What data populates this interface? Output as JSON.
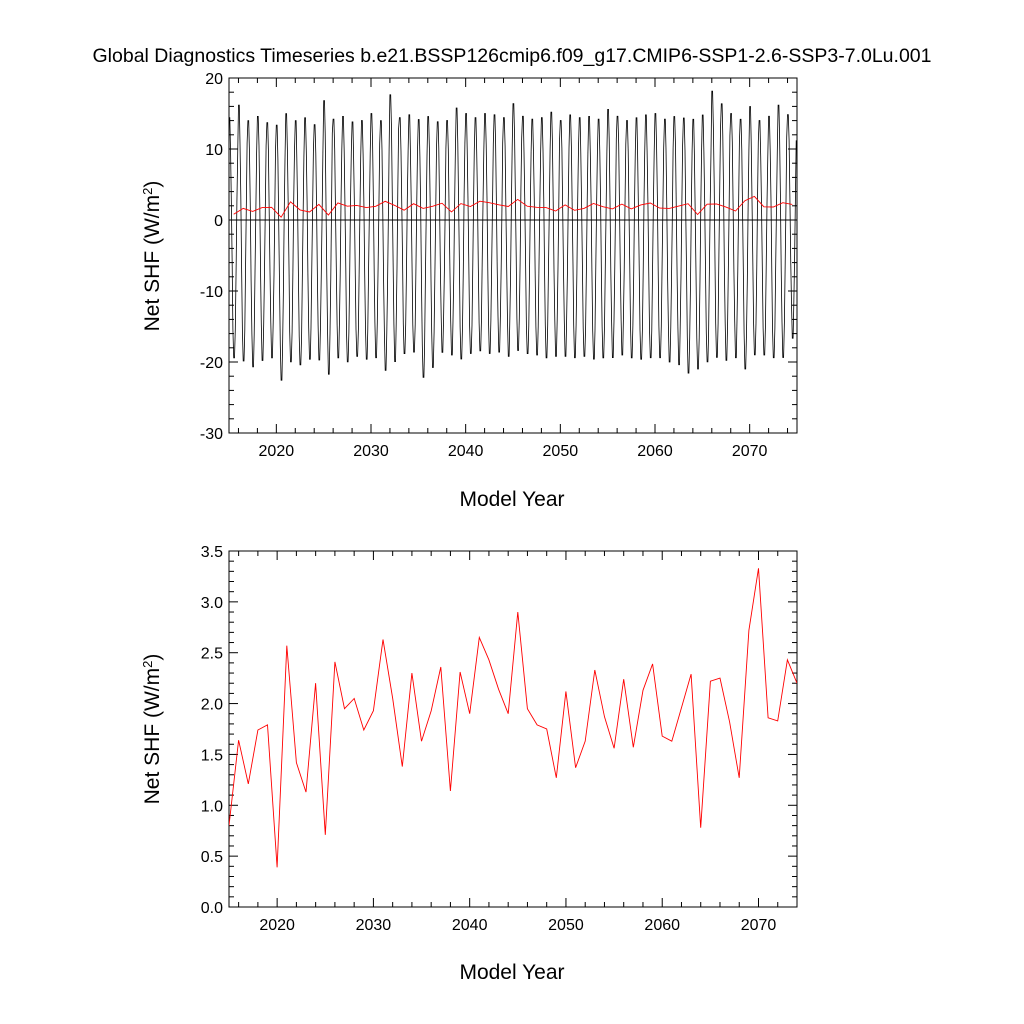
{
  "title": "Global Diagnostics Timeseries b.e21.BSSP126cmip6.f09_g17.CMIP6-SSP1-2.6-SSP3-7.0Lu.001",
  "colors": {
    "monthly": "#000000",
    "annual": "#ff0000",
    "axis": "#000000",
    "zero_line": "#000000"
  },
  "chart_data": [
    {
      "type": "line",
      "xlabel": "Model Year",
      "ylabel": "Net SHF (W/m²)",
      "ylabel_parts": {
        "main": "Net SHF (W/m",
        "sup": "2",
        "close": ")"
      },
      "xlim": [
        2015,
        2075
      ],
      "ylim": [
        -30,
        20
      ],
      "xticks": [
        2020,
        2030,
        2040,
        2050,
        2060,
        2070
      ],
      "xtick_labels": [
        "2020",
        "2030",
        "2040",
        "2050",
        "2060",
        "2070"
      ],
      "yticks": [
        -30,
        -20,
        -10,
        0,
        10,
        20
      ],
      "ytick_labels": [
        "-30",
        "-20",
        "-10",
        "0",
        "10",
        "20"
      ],
      "zero_line": 0,
      "series": [
        {
          "kind": "monthly",
          "x_start": 2015.0,
          "step": 0.08333,
          "months_per_year": 12,
          "years": [
            2015,
            2016,
            2017,
            2018,
            2019,
            2020,
            2021,
            2022,
            2023,
            2024,
            2025,
            2026,
            2027,
            2028,
            2029,
            2030,
            2031,
            2032,
            2033,
            2034,
            2035,
            2036,
            2037,
            2038,
            2039,
            2040,
            2041,
            2042,
            2043,
            2044,
            2045,
            2046,
            2047,
            2048,
            2049,
            2050,
            2051,
            2052,
            2053,
            2054,
            2055,
            2056,
            2057,
            2058,
            2059,
            2060,
            2061,
            2062,
            2063,
            2064,
            2065,
            2066,
            2067,
            2068,
            2069,
            2070,
            2071,
            2072,
            2073,
            2074
          ],
          "annual_max": [
            15.0,
            16.8,
            14.6,
            15.2,
            14.3,
            14.0,
            15.6,
            14.6,
            15.0,
            14.0,
            17.5,
            14.8,
            15.2,
            14.4,
            14.6,
            15.6,
            14.6,
            18.3,
            15.0,
            15.4,
            14.8,
            15.2,
            14.4,
            14.6,
            16.4,
            15.6,
            15.0,
            15.6,
            15.4,
            15.0,
            17.0,
            15.2,
            14.8,
            15.0,
            15.8,
            14.6,
            15.4,
            15.0,
            15.2,
            14.8,
            16.2,
            15.2,
            14.6,
            15.0,
            15.4,
            15.6,
            14.8,
            15.2,
            15.0,
            14.8,
            15.4,
            18.8,
            17.0,
            15.6,
            14.8,
            16.6,
            14.6,
            15.2,
            16.8,
            15.4
          ],
          "annual_min": [
            -20.0,
            -20.5,
            -21.3,
            -20.4,
            -20.0,
            -23.2,
            -20.6,
            -21.0,
            -20.2,
            -20.3,
            -22.4,
            -20.0,
            -20.6,
            -19.8,
            -20.2,
            -20.0,
            -21.8,
            -20.6,
            -19.4,
            -19.2,
            -22.8,
            -21.4,
            -19.2,
            -19.6,
            -20.2,
            -19.4,
            -19.0,
            -19.4,
            -19.2,
            -19.8,
            -19.0,
            -19.4,
            -19.6,
            -20.0,
            -19.8,
            -19.8,
            -20.0,
            -19.8,
            -20.2,
            -20.0,
            -20.0,
            -19.6,
            -20.0,
            -20.2,
            -20.0,
            -20.0,
            -20.6,
            -21.0,
            -22.2,
            -21.6,
            -20.6,
            -20.0,
            -20.4,
            -20.0,
            -21.6,
            -19.6,
            -19.6,
            -20.0,
            -20.0,
            -17.2
          ]
        },
        {
          "kind": "annual",
          "name": "annual mean",
          "x": [
            2015.5,
            2016.5,
            2017.5,
            2018.5,
            2019.5,
            2020.5,
            2021.5,
            2022.5,
            2023.5,
            2024.5,
            2025.5,
            2026.5,
            2027.5,
            2028.5,
            2029.5,
            2030.5,
            2031.5,
            2032.5,
            2033.5,
            2034.5,
            2035.5,
            2036.5,
            2037.5,
            2038.5,
            2039.5,
            2040.5,
            2041.5,
            2042.5,
            2043.5,
            2044.5,
            2045.5,
            2046.5,
            2047.5,
            2048.5,
            2049.5,
            2050.5,
            2051.5,
            2052.5,
            2053.5,
            2054.5,
            2055.5,
            2056.5,
            2057.5,
            2058.5,
            2059.5,
            2060.5,
            2061.5,
            2062.5,
            2063.5,
            2064.5,
            2065.5,
            2066.5,
            2067.5,
            2068.5,
            2069.5,
            2070.5,
            2071.5,
            2072.5,
            2073.5,
            2074.5
          ],
          "y": [
            0.8,
            1.64,
            1.21,
            1.74,
            1.79,
            0.39,
            2.57,
            1.42,
            1.13,
            2.2,
            0.71,
            2.41,
            1.95,
            2.05,
            1.74,
            1.93,
            2.63,
            2.05,
            1.38,
            2.3,
            1.63,
            1.93,
            2.36,
            1.14,
            2.31,
            1.9,
            2.65,
            2.43,
            2.14,
            1.9,
            2.9,
            1.95,
            1.79,
            1.75,
            1.27,
            2.12,
            1.37,
            1.63,
            2.33,
            1.87,
            1.56,
            2.24,
            1.57,
            2.13,
            2.39,
            1.68,
            1.63,
            1.96,
            2.29,
            0.78,
            2.22,
            2.25,
            1.82,
            1.27,
            2.72,
            3.33,
            1.86,
            1.83,
            2.43,
            2.2
          ]
        }
      ]
    },
    {
      "type": "line",
      "xlabel": "Model Year",
      "ylabel": "Net SHF (W/m²)",
      "ylabel_parts": {
        "main": "Net SHF (W/m",
        "sup": "2",
        "close": ")"
      },
      "xlim": [
        2015,
        2074
      ],
      "ylim": [
        0.0,
        3.5
      ],
      "xticks": [
        2020,
        2030,
        2040,
        2050,
        2060,
        2070
      ],
      "xtick_labels": [
        "2020",
        "2030",
        "2040",
        "2050",
        "2060",
        "2070"
      ],
      "yticks": [
        0.0,
        0.5,
        1.0,
        1.5,
        2.0,
        2.5,
        3.0,
        3.5
      ],
      "ytick_labels": [
        "0.0",
        "0.5",
        "1.0",
        "1.5",
        "2.0",
        "2.5",
        "3.0",
        "3.5"
      ],
      "series": [
        {
          "kind": "annual",
          "name": "annual mean",
          "x": [
            2015.0,
            2016.0,
            2017.0,
            2018.0,
            2019.0,
            2020.0,
            2021.0,
            2022.0,
            2023.0,
            2024.0,
            2025.0,
            2026.0,
            2027.0,
            2028.0,
            2029.0,
            2030.0,
            2031.0,
            2032.0,
            2033.0,
            2034.0,
            2035.0,
            2036.0,
            2037.0,
            2038.0,
            2039.0,
            2040.0,
            2041.0,
            2042.0,
            2043.0,
            2044.0,
            2045.0,
            2046.0,
            2047.0,
            2048.0,
            2049.0,
            2050.0,
            2051.0,
            2052.0,
            2053.0,
            2054.0,
            2055.0,
            2056.0,
            2057.0,
            2058.0,
            2059.0,
            2060.0,
            2061.0,
            2062.0,
            2063.0,
            2064.0,
            2065.0,
            2066.0,
            2067.0,
            2068.0,
            2069.0,
            2070.0,
            2071.0,
            2072.0,
            2073.0,
            2074.0
          ],
          "y": [
            0.8,
            1.64,
            1.21,
            1.74,
            1.79,
            0.39,
            2.57,
            1.42,
            1.13,
            2.2,
            0.71,
            2.41,
            1.95,
            2.05,
            1.74,
            1.93,
            2.63,
            2.05,
            1.38,
            2.3,
            1.63,
            1.93,
            2.36,
            1.14,
            2.31,
            1.9,
            2.65,
            2.43,
            2.14,
            1.9,
            2.9,
            1.95,
            1.79,
            1.75,
            1.27,
            2.12,
            1.37,
            1.63,
            2.33,
            1.87,
            1.56,
            2.24,
            1.57,
            2.13,
            2.39,
            1.68,
            1.63,
            1.96,
            2.29,
            0.78,
            2.22,
            2.25,
            1.82,
            1.27,
            2.72,
            3.33,
            1.86,
            1.83,
            2.43,
            2.2
          ]
        }
      ]
    }
  ]
}
